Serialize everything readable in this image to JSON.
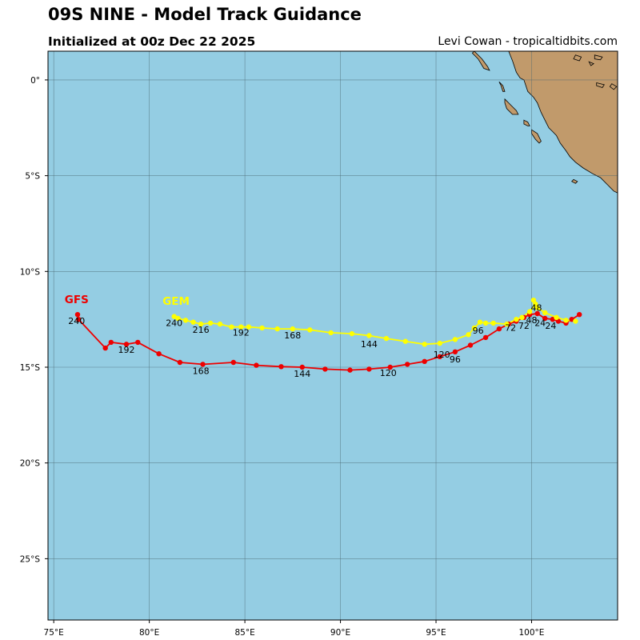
{
  "header": {
    "title": "09S NINE - Model Track Guidance",
    "subtitle": "Initialized at 00z Dec 22 2025",
    "credit": "Levi Cowan - tropicaltidbits.com"
  },
  "colors": {
    "ocean": "#94cde3",
    "land": "#c19a6b",
    "grid": "#4a6670",
    "gfs": "#ee0000",
    "gem": "#ffff00"
  },
  "axes": {
    "lon_range": [
      74.7,
      104.5
    ],
    "lat_range": [
      -28.2,
      1.5
    ],
    "lon_ticks": [
      75,
      80,
      85,
      90,
      95,
      100
    ],
    "lon_tick_labels": [
      "75°E",
      "80°E",
      "85°E",
      "90°E",
      "95°E",
      "100°E"
    ],
    "lat_ticks": [
      0,
      -5,
      -10,
      -15,
      -20,
      -25
    ],
    "lat_tick_labels": [
      "0°",
      "5°S",
      "10°S",
      "15°S",
      "20°S",
      "25°S"
    ],
    "grid": true
  },
  "chart_data": {
    "type": "line",
    "xlabel": "",
    "ylabel": "",
    "series": [
      {
        "name": "GFS",
        "color": "#ee0000",
        "points": [
          [
            102.5,
            -12.25
          ],
          [
            102.1,
            -12.5
          ],
          [
            101.8,
            -12.7
          ],
          [
            101.4,
            -12.6
          ],
          [
            101.1,
            -12.5
          ],
          [
            100.7,
            -12.45
          ],
          [
            100.3,
            -12.2
          ],
          [
            99.9,
            -12.25
          ],
          [
            99.6,
            -12.4
          ],
          [
            99.2,
            -12.6
          ],
          [
            98.8,
            -12.75
          ],
          [
            98.3,
            -13.0
          ],
          [
            97.6,
            -13.45
          ],
          [
            96.8,
            -13.85
          ],
          [
            96.0,
            -14.2
          ],
          [
            95.2,
            -14.45
          ],
          [
            94.4,
            -14.7
          ],
          [
            93.5,
            -14.85
          ],
          [
            92.6,
            -15.0
          ],
          [
            91.5,
            -15.1
          ],
          [
            90.5,
            -15.15
          ],
          [
            89.2,
            -15.1
          ],
          [
            88.0,
            -15.0
          ],
          [
            86.9,
            -14.97
          ],
          [
            85.6,
            -14.9
          ],
          [
            84.4,
            -14.75
          ],
          [
            82.8,
            -14.85
          ],
          [
            81.6,
            -14.75
          ],
          [
            80.5,
            -14.3
          ],
          [
            79.4,
            -13.7
          ],
          [
            78.8,
            -13.8
          ],
          [
            78.0,
            -13.7
          ],
          [
            77.7,
            -14.0
          ],
          [
            76.3,
            -12.5
          ],
          [
            76.25,
            -12.25
          ]
        ],
        "labels": [
          {
            "text": "24",
            "lon": 101.0,
            "lat": -13.0
          },
          {
            "text": "48",
            "lon": 100.0,
            "lat": -12.7
          },
          {
            "text": "72",
            "lon": 98.9,
            "lat": -13.1
          },
          {
            "text": "96",
            "lon": 96.0,
            "lat": -14.75
          },
          {
            "text": "120",
            "lon": 92.5,
            "lat": -15.45
          },
          {
            "text": "144",
            "lon": 88.0,
            "lat": -15.5
          },
          {
            "text": "168",
            "lon": 82.7,
            "lat": -15.35
          },
          {
            "text": "192",
            "lon": 78.8,
            "lat": -14.25
          },
          {
            "text": "240",
            "lon": 76.2,
            "lat": -12.75
          }
        ],
        "model_label": {
          "text": "GFS",
          "lon": 76.2,
          "lat": -11.65
        }
      },
      {
        "name": "GEM",
        "color": "#ffff00",
        "points": [
          [
            102.3,
            -12.6
          ],
          [
            101.8,
            -12.55
          ],
          [
            101.3,
            -12.4
          ],
          [
            100.7,
            -12.15
          ],
          [
            100.3,
            -11.9
          ],
          [
            100.1,
            -11.5
          ],
          [
            100.2,
            -11.7
          ],
          [
            99.9,
            -12.1
          ],
          [
            99.5,
            -12.4
          ],
          [
            99.2,
            -12.5
          ],
          [
            98.7,
            -12.75
          ],
          [
            98.0,
            -12.7
          ],
          [
            97.6,
            -12.7
          ],
          [
            97.3,
            -12.65
          ],
          [
            97.0,
            -12.95
          ],
          [
            96.7,
            -13.3
          ],
          [
            96.0,
            -13.55
          ],
          [
            95.2,
            -13.75
          ],
          [
            94.4,
            -13.8
          ],
          [
            93.4,
            -13.65
          ],
          [
            92.4,
            -13.5
          ],
          [
            91.5,
            -13.35
          ],
          [
            90.6,
            -13.25
          ],
          [
            89.5,
            -13.2
          ],
          [
            88.4,
            -13.05
          ],
          [
            87.5,
            -13.0
          ],
          [
            86.7,
            -13.0
          ],
          [
            85.9,
            -12.95
          ],
          [
            85.2,
            -12.9
          ],
          [
            84.8,
            -12.9
          ],
          [
            84.3,
            -12.9
          ],
          [
            83.7,
            -12.75
          ],
          [
            83.2,
            -12.7
          ],
          [
            82.7,
            -12.75
          ],
          [
            82.3,
            -12.65
          ],
          [
            81.9,
            -12.55
          ],
          [
            81.5,
            -12.45
          ],
          [
            81.3,
            -12.35
          ]
        ],
        "labels": [
          {
            "text": "24",
            "lon": 100.45,
            "lat": -12.85
          },
          {
            "text": "48",
            "lon": 100.25,
            "lat": -12.05
          },
          {
            "text": "72",
            "lon": 99.6,
            "lat": -13.0
          },
          {
            "text": "96",
            "lon": 97.2,
            "lat": -13.25
          },
          {
            "text": "120",
            "lon": 95.3,
            "lat": -14.5
          },
          {
            "text": "144",
            "lon": 91.5,
            "lat": -13.95
          },
          {
            "text": "168",
            "lon": 87.5,
            "lat": -13.5
          },
          {
            "text": "192",
            "lon": 84.8,
            "lat": -13.35
          },
          {
            "text": "216",
            "lon": 82.7,
            "lat": -13.2
          },
          {
            "text": "240",
            "lon": 81.3,
            "lat": -12.85
          }
        ],
        "model_label": {
          "text": "GEM",
          "lon": 81.4,
          "lat": -11.75
        }
      }
    ]
  },
  "land": {
    "mainland": [
      [
        98.8,
        1.5
      ],
      [
        99.0,
        1.0
      ],
      [
        99.2,
        0.4
      ],
      [
        99.4,
        0.1
      ],
      [
        99.6,
        0.0
      ],
      [
        99.8,
        -0.6
      ],
      [
        100.1,
        -0.9
      ],
      [
        100.3,
        -1.2
      ],
      [
        100.5,
        -1.7
      ],
      [
        100.7,
        -2.1
      ],
      [
        100.9,
        -2.5
      ],
      [
        101.1,
        -2.7
      ],
      [
        101.3,
        -2.9
      ],
      [
        101.5,
        -3.3
      ],
      [
        101.8,
        -3.7
      ],
      [
        102.0,
        -4.0
      ],
      [
        102.3,
        -4.3
      ],
      [
        102.7,
        -4.6
      ],
      [
        103.2,
        -4.9
      ],
      [
        103.6,
        -5.1
      ],
      [
        104.0,
        -5.5
      ],
      [
        104.3,
        -5.8
      ],
      [
        104.5,
        -5.9
      ],
      [
        104.5,
        1.5
      ]
    ],
    "islands": [
      [
        [
          97.0,
          1.5
        ],
        [
          97.4,
          1.1
        ],
        [
          97.7,
          0.7
        ],
        [
          97.8,
          0.5
        ],
        [
          97.5,
          0.6
        ],
        [
          97.2,
          1.1
        ],
        [
          96.9,
          1.4
        ]
      ],
      [
        [
          98.3,
          -0.1
        ],
        [
          98.5,
          -0.3
        ],
        [
          98.6,
          -0.6
        ],
        [
          98.5,
          -0.6
        ],
        [
          98.4,
          -0.3
        ]
      ],
      [
        [
          98.6,
          -1.0
        ],
        [
          98.8,
          -1.2
        ],
        [
          99.2,
          -1.6
        ],
        [
          99.3,
          -1.8
        ],
        [
          99.0,
          -1.8
        ],
        [
          98.7,
          -1.5
        ],
        [
          98.6,
          -1.2
        ]
      ],
      [
        [
          99.6,
          -2.1
        ],
        [
          99.8,
          -2.2
        ],
        [
          99.9,
          -2.4
        ],
        [
          99.8,
          -2.4
        ],
        [
          99.6,
          -2.3
        ]
      ],
      [
        [
          100.0,
          -2.6
        ],
        [
          100.3,
          -2.8
        ],
        [
          100.5,
          -3.2
        ],
        [
          100.4,
          -3.3
        ],
        [
          100.2,
          -3.1
        ],
        [
          100.0,
          -2.8
        ]
      ],
      [
        [
          102.2,
          -5.2
        ],
        [
          102.4,
          -5.3
        ],
        [
          102.3,
          -5.4
        ],
        [
          102.1,
          -5.3
        ]
      ],
      [
        [
          103.4,
          -0.15
        ],
        [
          103.8,
          -0.25
        ],
        [
          103.7,
          -0.4
        ],
        [
          103.4,
          -0.3
        ]
      ],
      [
        [
          104.2,
          -0.2
        ],
        [
          104.45,
          -0.35
        ],
        [
          104.3,
          -0.5
        ],
        [
          104.1,
          -0.35
        ]
      ],
      [
        [
          102.3,
          1.3
        ],
        [
          102.6,
          1.2
        ],
        [
          102.5,
          1.0
        ],
        [
          102.2,
          1.1
        ]
      ],
      [
        [
          103.3,
          1.3
        ],
        [
          103.7,
          1.2
        ],
        [
          103.6,
          1.05
        ],
        [
          103.3,
          1.1
        ]
      ],
      [
        [
          103.0,
          0.95
        ],
        [
          103.25,
          0.85
        ],
        [
          103.1,
          0.75
        ]
      ]
    ]
  }
}
